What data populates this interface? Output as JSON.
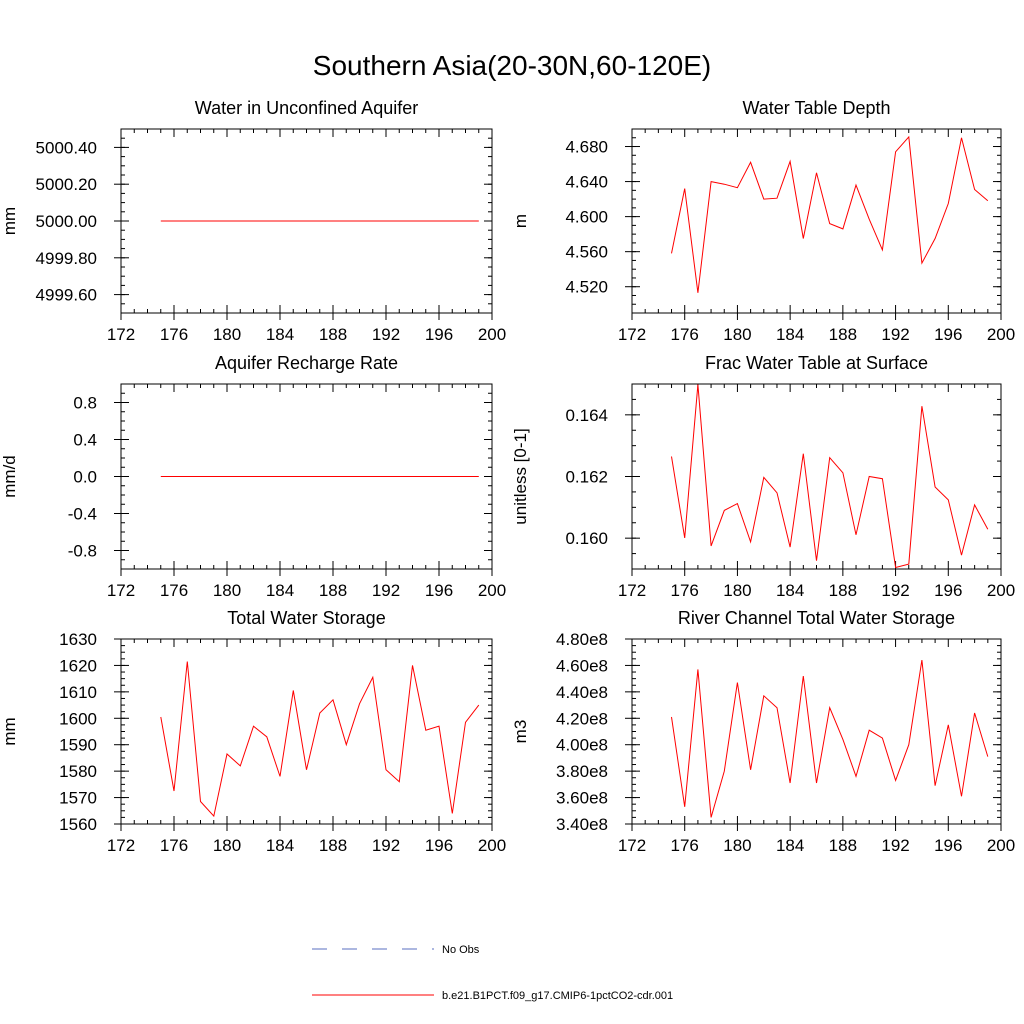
{
  "title": "Southern Asia(20-30N,60-120E)",
  "years": [
    175,
    176,
    177,
    178,
    179,
    180,
    181,
    182,
    183,
    184,
    185,
    186,
    187,
    188,
    189,
    190,
    191,
    192,
    193,
    194,
    195,
    196,
    197,
    198,
    199
  ],
  "chart_data": [
    {
      "type": "line",
      "title": "Water in Unconfined Aquifer",
      "ylabel": "mm",
      "xlim": [
        172,
        200
      ],
      "xticks": [
        172,
        176,
        180,
        184,
        188,
        192,
        196,
        200
      ],
      "ylim": [
        4999.5,
        5000.5
      ],
      "yticks": [
        4999.6,
        4999.8,
        5000.0,
        5000.2,
        5000.4
      ],
      "ytick_labels": [
        "4999.60",
        "4999.80",
        "5000.00",
        "5000.20",
        "5000.40"
      ],
      "series": [
        {
          "values": [
            5000,
            5000,
            5000,
            5000,
            5000,
            5000,
            5000,
            5000,
            5000,
            5000,
            5000,
            5000,
            5000,
            5000,
            5000,
            5000,
            5000,
            5000,
            5000,
            5000,
            5000,
            5000,
            5000,
            5000,
            5000
          ]
        }
      ]
    },
    {
      "type": "line",
      "title": "Water Table Depth",
      "ylabel": "m",
      "xlim": [
        172,
        200
      ],
      "xticks": [
        172,
        176,
        180,
        184,
        188,
        192,
        196,
        200
      ],
      "ylim": [
        4.49,
        4.7
      ],
      "yticks": [
        4.52,
        4.56,
        4.6,
        4.64,
        4.68
      ],
      "ytick_labels": [
        "4.520",
        "4.560",
        "4.600",
        "4.640",
        "4.680"
      ],
      "series": [
        {
          "values": [
            4.558,
            4.632,
            4.513,
            4.64,
            4.637,
            4.633,
            4.662,
            4.62,
            4.621,
            4.663,
            4.575,
            4.65,
            4.592,
            4.586,
            4.636,
            4.597,
            4.562,
            4.674,
            4.691,
            4.547,
            4.575,
            4.615,
            4.69,
            4.631,
            4.618
          ]
        }
      ]
    },
    {
      "type": "line",
      "title": "Aquifer Recharge Rate",
      "ylabel": "mm/d",
      "xlim": [
        172,
        200
      ],
      "xticks": [
        172,
        176,
        180,
        184,
        188,
        192,
        196,
        200
      ],
      "ylim": [
        -1.0,
        1.0
      ],
      "yticks": [
        -0.8,
        -0.4,
        0.0,
        0.4,
        0.8
      ],
      "ytick_labels": [
        "-0.8",
        "-0.4",
        "0.0",
        "0.4",
        "0.8"
      ],
      "series": [
        {
          "values": [
            0,
            0,
            0,
            0,
            0,
            0,
            0,
            0,
            0,
            0,
            0,
            0,
            0,
            0,
            0,
            0,
            0,
            0,
            0,
            0,
            0,
            0,
            0,
            0,
            0
          ]
        }
      ]
    },
    {
      "type": "line",
      "title": "Frac Water Table at Surface",
      "ylabel": "unitless [0-1]",
      "xlim": [
        172,
        200
      ],
      "xticks": [
        172,
        176,
        180,
        184,
        188,
        192,
        196,
        200
      ],
      "ylim": [
        0.159,
        0.165
      ],
      "yticks": [
        0.16,
        0.162,
        0.164
      ],
      "ytick_labels": [
        "0.160",
        "0.162",
        "0.164"
      ],
      "series": [
        {
          "values": [
            0.16265,
            0.16001,
            0.16498,
            0.15975,
            0.1609,
            0.16112,
            0.15988,
            0.16197,
            0.16147,
            0.15971,
            0.16274,
            0.15927,
            0.16261,
            0.16212,
            0.16011,
            0.162,
            0.16193,
            0.15905,
            0.15916,
            0.16428,
            0.16166,
            0.16124,
            0.15945,
            0.16108,
            0.16029
          ]
        }
      ]
    },
    {
      "type": "line",
      "title": "Total Water Storage",
      "ylabel": "mm",
      "xlim": [
        172,
        200
      ],
      "xticks": [
        172,
        176,
        180,
        184,
        188,
        192,
        196,
        200
      ],
      "ylim": [
        1560,
        1630
      ],
      "yticks": [
        1560,
        1570,
        1580,
        1590,
        1600,
        1610,
        1620,
        1630
      ],
      "ytick_labels": [
        "1560",
        "1570",
        "1580",
        "1590",
        "1600",
        "1610",
        "1620",
        "1630"
      ],
      "series": [
        {
          "values": [
            1600.5,
            1572.5,
            1621.5,
            1568.5,
            1563.0,
            1586.5,
            1582.0,
            1597.0,
            1593.0,
            1578.0,
            1610.5,
            1580.5,
            1602.0,
            1607.0,
            1590.0,
            1605.5,
            1615.5,
            1580.5,
            1576.0,
            1620.0,
            1595.5,
            1597.0,
            1564.0,
            1598.5,
            1605.0
          ]
        }
      ]
    },
    {
      "type": "line",
      "title": "River Channel Total Water Storage",
      "ylabel": "m3",
      "xlim": [
        172,
        200
      ],
      "xticks": [
        172,
        176,
        180,
        184,
        188,
        192,
        196,
        200
      ],
      "ylim": [
        340000000,
        480000000
      ],
      "yticks": [
        340000000,
        360000000,
        380000000,
        400000000,
        420000000,
        440000000,
        460000000,
        480000000
      ],
      "ytick_labels": [
        "3.40e8",
        "3.60e8",
        "3.80e8",
        "4.00e8",
        "4.20e8",
        "4.40e8",
        "4.60e8",
        "4.80e8"
      ],
      "series": [
        {
          "values": [
            421000000,
            353000000,
            457000000,
            345000000,
            380000000,
            447000000,
            381000000,
            437000000,
            428000000,
            371000000,
            452000000,
            371000000,
            428000000,
            404000000,
            376000000,
            411000000,
            405000000,
            373000000,
            400000000,
            464000000,
            369000000,
            415000000,
            361000000,
            424000000,
            391000000
          ]
        }
      ]
    }
  ],
  "legend": [
    {
      "label": "No Obs",
      "color": "#5a6fc0",
      "style": "dashed"
    },
    {
      "label": "b.e21.B1PCT.f09_g17.CMIP6-1pctCO2-cdr.001",
      "color": "#ff0000",
      "style": "solid"
    }
  ],
  "line_color": "#ff0000"
}
